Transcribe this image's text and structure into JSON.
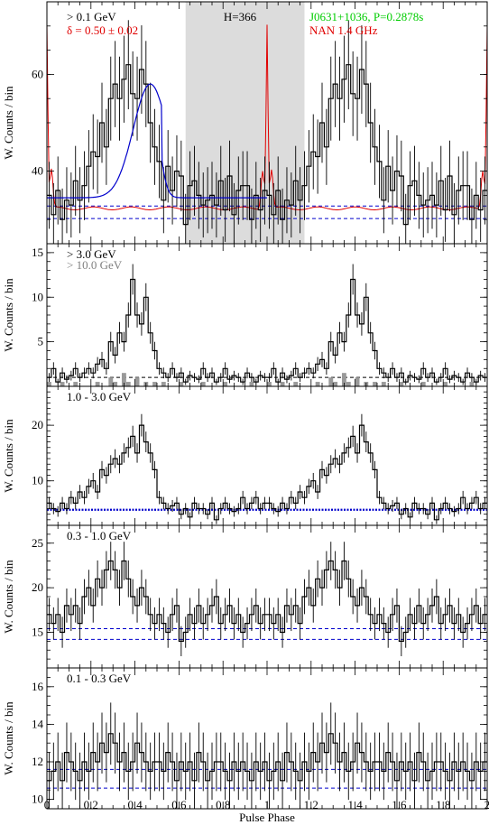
{
  "figure": {
    "xlabel": "Pulse Phase",
    "ylabel": "W. Counts / bin"
  },
  "chart_data": [
    {
      "type": "histogram",
      "panel": "top",
      "annotations": [
        {
          "text": "> 0.1 GeV",
          "color": "#000000",
          "pos": "top-left"
        },
        {
          "text": "δ = 0.50 ± 0.02",
          "color": "#e00000",
          "pos": "top-left-2"
        },
        {
          "text": "H=366",
          "color": "#000000",
          "pos": "top-center"
        },
        {
          "text": "J0631+1036, P=0.2878s",
          "color": "#00cc00",
          "pos": "top-right"
        },
        {
          "text": "NAN 1.4 GHz",
          "color": "#e00000",
          "pos": "top-right-2"
        }
      ],
      "shaded_region": [
        0.63,
        1.17
      ],
      "ylim": [
        25,
        75
      ],
      "yticks": [
        40,
        60
      ],
      "xlim": [
        0,
        2
      ],
      "background_levels": [
        30.2,
        32.8
      ],
      "values": [
        35,
        31,
        36,
        30,
        34,
        33,
        38,
        34,
        37,
        41,
        44,
        43,
        50,
        45,
        55,
        58,
        55,
        59,
        62,
        56,
        55,
        61,
        58,
        50,
        45,
        42,
        34,
        41,
        36,
        40,
        39,
        29,
        37,
        38,
        35,
        33,
        34,
        35,
        33,
        38,
        32,
        39,
        31,
        36,
        37,
        37,
        30,
        35,
        32,
        36
      ],
      "fit_peak": 58,
      "fit_base": 34.5
    },
    {
      "type": "histogram",
      "panel": "3GeV",
      "annotations": [
        {
          "text": "> 3.0 GeV",
          "color": "#000000"
        },
        {
          "text": "> 10.0 GeV",
          "color": "#808080"
        }
      ],
      "ylim": [
        0,
        16
      ],
      "yticks": [
        5,
        10,
        15
      ],
      "xlim": [
        0,
        2
      ],
      "background_levels": [
        1.0
      ],
      "values": [
        1,
        2,
        0.5,
        1.5,
        0.8,
        1.2,
        2,
        1,
        1.5,
        2,
        1.5,
        2.5,
        3,
        2,
        5,
        3.5,
        6,
        5,
        8,
        12,
        8,
        7,
        10,
        6,
        4,
        2,
        1.5,
        1,
        2,
        1,
        1.5,
        0.5,
        1.2,
        1,
        0.8,
        2,
        1,
        1.5,
        0.5,
        1,
        2,
        0.8,
        1.2,
        1,
        0.5,
        1.5,
        1,
        0.5,
        1.2,
        1
      ],
      "values_gt10": [
        0.5,
        0,
        0,
        0.5,
        0,
        0,
        0.5,
        0,
        0,
        0,
        0,
        0.5,
        0,
        0,
        1,
        0.5,
        0,
        1.5,
        0.5,
        0,
        1,
        0,
        0.5,
        0,
        0.5,
        0,
        0.5,
        0,
        0,
        0,
        0.5,
        0,
        0,
        0,
        0,
        0.5,
        0,
        0,
        0,
        0,
        0.5,
        0,
        0,
        0,
        0,
        0,
        0.5,
        0,
        0,
        0
      ]
    },
    {
      "type": "histogram",
      "panel": "1-3GeV",
      "annotations": [
        {
          "text": "1.0 - 3.0 GeV",
          "color": "#000000"
        }
      ],
      "ylim": [
        2,
        27
      ],
      "yticks": [
        10,
        20
      ],
      "xlim": [
        0,
        2
      ],
      "background_levels": [
        4.8
      ],
      "values": [
        6,
        5,
        4.5,
        6,
        5,
        7,
        6,
        8,
        7,
        9,
        10,
        8,
        12,
        11,
        13,
        14,
        13,
        15,
        16,
        18,
        15,
        20,
        17,
        15,
        12,
        7,
        6,
        5,
        5.5,
        6,
        4,
        5,
        3.5,
        6,
        5,
        5,
        4,
        6,
        3,
        5,
        6,
        5,
        4.5,
        5,
        7,
        5,
        6,
        7,
        5,
        6
      ]
    },
    {
      "type": "histogram",
      "panel": "0.3-1GeV",
      "annotations": [
        {
          "text": "0.3 - 1.0 GeV",
          "color": "#000000"
        }
      ],
      "ylim": [
        11,
        27
      ],
      "yticks": [
        15,
        20,
        25
      ],
      "xlim": [
        0,
        2
      ],
      "background_levels": [
        14.2,
        15.4
      ],
      "values": [
        17,
        16,
        17,
        15,
        18,
        17,
        18,
        16,
        19,
        20,
        18,
        21,
        20,
        22,
        23,
        22,
        20,
        23,
        21,
        19,
        18,
        20,
        19,
        17,
        16,
        17,
        16,
        15,
        17,
        18,
        14,
        15,
        17,
        16,
        18,
        16,
        17,
        18,
        19,
        16,
        17,
        18,
        16,
        17,
        15,
        16,
        17,
        18,
        16,
        17
      ]
    },
    {
      "type": "histogram",
      "panel": "0.1-0.3GeV",
      "annotations": [
        {
          "text": "0.1 - 0.3 GeV",
          "color": "#000000"
        }
      ],
      "ylim": [
        9.5,
        17
      ],
      "yticks": [
        10,
        12,
        14,
        16
      ],
      "xlim": [
        0,
        2
      ],
      "background_levels": [
        10.6,
        11.6
      ],
      "values": [
        11,
        11.5,
        12,
        11,
        12.5,
        12,
        11.5,
        11,
        12,
        11.5,
        12.5,
        12,
        13,
        12.5,
        13.5,
        13,
        12,
        12.5,
        11.5,
        12,
        13,
        12.5,
        12,
        11.5,
        12,
        12,
        11.5,
        12.5,
        12,
        11,
        12,
        11.5,
        12,
        11,
        12.5,
        12,
        11,
        11.5,
        12,
        12,
        11.5,
        11,
        12,
        11.5,
        12,
        11.5,
        11,
        12,
        11.5,
        12
      ]
    }
  ],
  "xticks": [
    "0",
    "0.2",
    "0.4",
    "0.6",
    "0.8",
    "1",
    "1.2",
    "1.4",
    "1.6",
    "1.8",
    "2"
  ],
  "colors": {
    "fit": "#0000cc",
    "bg": "#0000cc",
    "radio": "#e00000",
    "shade": "#dcdcdc",
    "gt10": "#999999"
  }
}
